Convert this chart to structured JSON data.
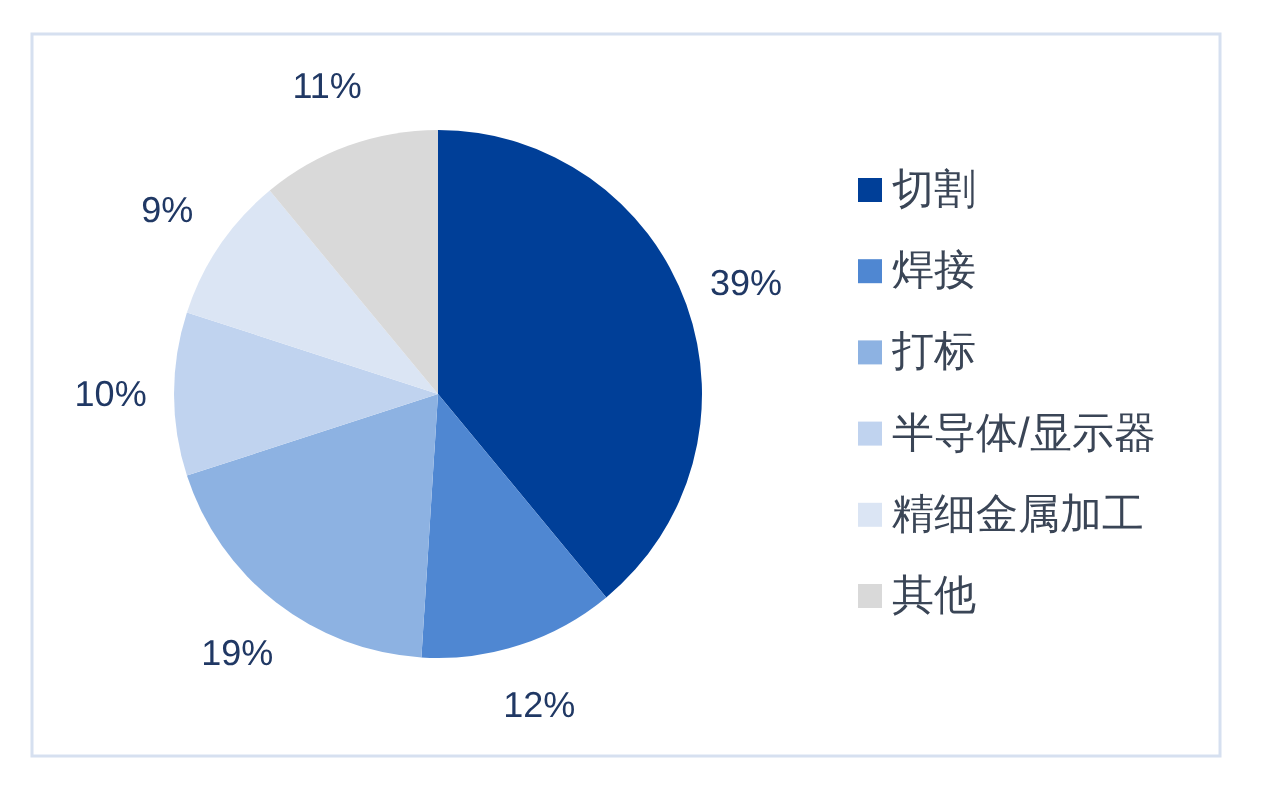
{
  "chart_data": {
    "type": "pie",
    "categories": [
      "切割",
      "焊接",
      "打标",
      "半导体/显示器",
      "精细金属加工",
      "其他"
    ],
    "values": [
      39,
      12,
      19,
      10,
      9,
      11
    ],
    "colors": [
      "#003f98",
      "#4f87d2",
      "#8db2e2",
      "#c0d3ef",
      "#dbe5f4",
      "#d9d9d9"
    ],
    "value_labels": [
      "39%",
      "12%",
      "19%",
      "10%",
      "9%",
      "11%"
    ],
    "legend": "right"
  }
}
